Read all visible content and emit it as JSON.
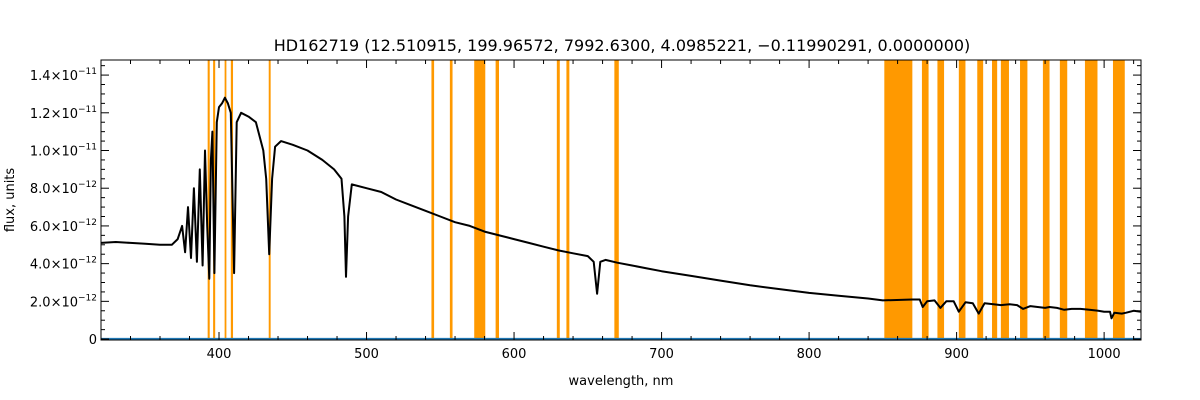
{
  "chart_data": {
    "type": "line",
    "title": "HD162719   (12.510915, 199.96572, 7992.6300, 4.0985221, −0.11990291, 0.0000000)",
    "xlabel": "wavelength, nm",
    "ylabel": "flux, units",
    "xlim": [
      320,
      1025
    ],
    "ylim": [
      -5e-14,
      1.48e-11
    ],
    "x_ticks": [
      400,
      500,
      600,
      700,
      800,
      900,
      1000
    ],
    "x_tick_labels": [
      "400",
      "500",
      "600",
      "700",
      "800",
      "900",
      "1000"
    ],
    "y_ticks": [
      0,
      2e-12,
      4e-12,
      6e-12,
      8e-12,
      1e-11,
      1.2e-11,
      1.4e-11
    ],
    "y_tick_labels": [
      {
        "mant": "0",
        "exp": ""
      },
      {
        "mant": "2.0×10",
        "exp": "−12"
      },
      {
        "mant": "4.0×10",
        "exp": "−12"
      },
      {
        "mant": "6.0×10",
        "exp": "−12"
      },
      {
        "mant": "8.0×10",
        "exp": "−12"
      },
      {
        "mant": "1.0×10",
        "exp": "−11"
      },
      {
        "mant": "1.2×10",
        "exp": "−11"
      },
      {
        "mant": "1.4×10",
        "exp": "−11"
      }
    ],
    "grid": false,
    "colors": {
      "spectrum": "#000000",
      "mask": "#ff9900",
      "baseline": "#1f77b4"
    },
    "masked_bands_nm": [
      [
        392.3,
        393.7
      ],
      [
        396.0,
        397.4
      ],
      [
        403.8,
        405.0
      ],
      [
        408.0,
        409.5
      ],
      [
        433.7,
        435.0
      ],
      [
        544.0,
        545.8
      ],
      [
        556.5,
        558.3
      ],
      [
        573.0,
        580.5
      ],
      [
        587.5,
        589.8
      ],
      [
        629.0,
        631.0
      ],
      [
        635.5,
        637.5
      ],
      [
        668.0,
        671.0
      ],
      [
        851.0,
        870.0
      ],
      [
        876.5,
        881.0
      ],
      [
        887.0,
        891.5
      ],
      [
        901.5,
        906.0
      ],
      [
        914.0,
        918.0
      ],
      [
        924.0,
        927.5
      ],
      [
        930.0,
        935.5
      ],
      [
        943.0,
        948.0
      ],
      [
        958.5,
        963.0
      ],
      [
        970.0,
        975.0
      ],
      [
        987.0,
        995.5
      ],
      [
        1006.0,
        1014.0
      ]
    ],
    "series": [
      {
        "role": "spectrum",
        "points": [
          [
            320,
            5.1e-12
          ],
          [
            330,
            5.15e-12
          ],
          [
            340,
            5.1e-12
          ],
          [
            350,
            5.05e-12
          ],
          [
            360,
            5e-12
          ],
          [
            368,
            5e-12
          ],
          [
            372,
            5.3e-12
          ],
          [
            375,
            6e-12
          ],
          [
            377,
            4.6e-12
          ],
          [
            379,
            7e-12
          ],
          [
            381,
            4.3e-12
          ],
          [
            383,
            8e-12
          ],
          [
            385,
            4.1e-12
          ],
          [
            387,
            9e-12
          ],
          [
            388.9,
            3.9e-12
          ],
          [
            390.5,
            1e-11
          ],
          [
            392,
            6e-12
          ],
          [
            393.4,
            3.2e-12
          ],
          [
            394.5,
            9.5e-12
          ],
          [
            395.5,
            1.1e-11
          ],
          [
            396.9,
            3.5e-12
          ],
          [
            398.5,
            1.15e-11
          ],
          [
            400,
            1.23e-11
          ],
          [
            402,
            1.25e-11
          ],
          [
            404,
            1.28e-11
          ],
          [
            406,
            1.25e-11
          ],
          [
            408,
            1.2e-11
          ],
          [
            410.2,
            3.5e-12
          ],
          [
            412,
            1.15e-11
          ],
          [
            415,
            1.2e-11
          ],
          [
            420,
            1.18e-11
          ],
          [
            425,
            1.15e-11
          ],
          [
            430,
            1e-11
          ],
          [
            432,
            8.5e-12
          ],
          [
            434,
            4.5e-12
          ],
          [
            436,
            8.5e-12
          ],
          [
            438,
            1.02e-11
          ],
          [
            442,
            1.05e-11
          ],
          [
            450,
            1.03e-11
          ],
          [
            460,
            1e-11
          ],
          [
            470,
            9.5e-12
          ],
          [
            478,
            9e-12
          ],
          [
            483,
            8.5e-12
          ],
          [
            485,
            6.5e-12
          ],
          [
            486.1,
            3.3e-12
          ],
          [
            487.5,
            6.5e-12
          ],
          [
            490,
            8.2e-12
          ],
          [
            500,
            8e-12
          ],
          [
            510,
            7.8e-12
          ],
          [
            520,
            7.4e-12
          ],
          [
            530,
            7.1e-12
          ],
          [
            540,
            6.8e-12
          ],
          [
            550,
            6.5e-12
          ],
          [
            560,
            6.2e-12
          ],
          [
            570,
            6e-12
          ],
          [
            580,
            5.7e-12
          ],
          [
            590,
            5.5e-12
          ],
          [
            600,
            5.3e-12
          ],
          [
            610,
            5.1e-12
          ],
          [
            620,
            4.9e-12
          ],
          [
            630,
            4.7e-12
          ],
          [
            640,
            4.55e-12
          ],
          [
            650,
            4.4e-12
          ],
          [
            654,
            4.1e-12
          ],
          [
            656.3,
            2.4e-12
          ],
          [
            658.5,
            4.1e-12
          ],
          [
            662,
            4.2e-12
          ],
          [
            670,
            4.05e-12
          ],
          [
            680,
            3.9e-12
          ],
          [
            690,
            3.75e-12
          ],
          [
            700,
            3.6e-12
          ],
          [
            720,
            3.35e-12
          ],
          [
            740,
            3.1e-12
          ],
          [
            760,
            2.85e-12
          ],
          [
            780,
            2.65e-12
          ],
          [
            800,
            2.45e-12
          ],
          [
            820,
            2.3e-12
          ],
          [
            840,
            2.15e-12
          ],
          [
            850,
            2.05e-12
          ],
          [
            870,
            2.1e-12
          ],
          [
            875,
            2.1e-12
          ],
          [
            877,
            1.7e-12
          ],
          [
            880,
            2e-12
          ],
          [
            885,
            2.05e-12
          ],
          [
            889,
            1.65e-12
          ],
          [
            893,
            2e-12
          ],
          [
            898,
            2e-12
          ],
          [
            901.5,
            1.45e-12
          ],
          [
            906,
            1.95e-12
          ],
          [
            911,
            1.9e-12
          ],
          [
            915,
            1.35e-12
          ],
          [
            919,
            1.9e-12
          ],
          [
            925,
            1.85e-12
          ],
          [
            930,
            1.8e-12
          ],
          [
            936,
            1.85e-12
          ],
          [
            941,
            1.8e-12
          ],
          [
            945,
            1.6e-12
          ],
          [
            950,
            1.75e-12
          ],
          [
            955,
            1.7e-12
          ],
          [
            960,
            1.65e-12
          ],
          [
            963,
            1.7e-12
          ],
          [
            968,
            1.65e-12
          ],
          [
            973,
            1.55e-12
          ],
          [
            978,
            1.6e-12
          ],
          [
            984,
            1.6e-12
          ],
          [
            990,
            1.55e-12
          ],
          [
            996,
            1.5e-12
          ],
          [
            1000,
            1.45e-12
          ],
          [
            1004,
            1.45e-12
          ],
          [
            1005,
            1.1e-12
          ],
          [
            1007,
            1.4e-12
          ],
          [
            1012,
            1.35e-12
          ],
          [
            1015,
            1.4e-12
          ],
          [
            1020,
            1.5e-12
          ],
          [
            1025,
            1.45e-12
          ]
        ]
      },
      {
        "role": "baseline",
        "points": [
          [
            320,
            0.0
          ],
          [
            1025,
            0.0
          ]
        ]
      }
    ]
  }
}
